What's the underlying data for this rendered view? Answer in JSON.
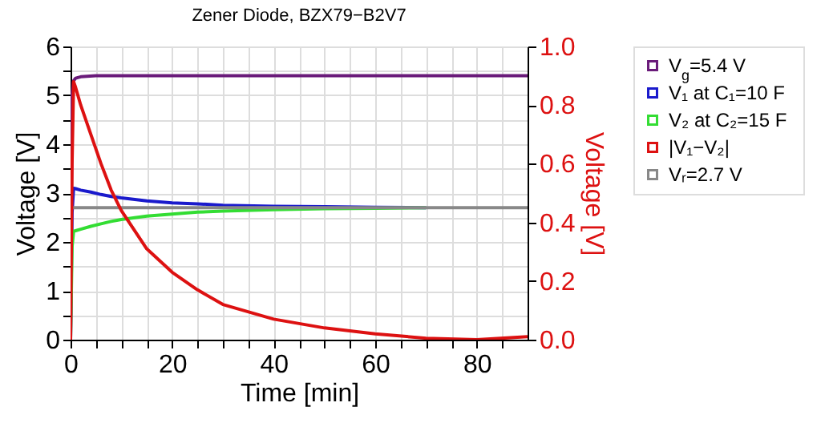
{
  "chart_data": {
    "type": "line",
    "title": "Zener Diode, BZX79−B2V7",
    "xlabel": "Time [min]",
    "ylabel": "Voltage [V]",
    "y2label": "Voltage [V]",
    "xlim": [
      0,
      90
    ],
    "xticks": [
      0,
      {
        "value": 5,
        "label": null
      },
      {
        "value": 10,
        "label": null
      },
      {
        "value": 15,
        "label": null
      },
      20,
      {
        "value": 25,
        "label": null
      },
      {
        "value": 30,
        "label": null
      },
      {
        "value": 35,
        "label": null
      },
      40,
      {
        "value": 45,
        "label": null
      },
      {
        "value": 50,
        "label": null
      },
      {
        "value": 55,
        "label": null
      },
      60,
      {
        "value": 65,
        "label": null
      },
      {
        "value": 70,
        "label": null
      },
      {
        "value": 75,
        "label": null
      },
      80,
      {
        "value": 85,
        "label": null
      }
    ],
    "ylim": [
      0,
      6
    ],
    "yticks": [
      0,
      {
        "value": 0.5,
        "label": null
      },
      1,
      {
        "value": 1.5,
        "label": null
      },
      2,
      {
        "value": 2.5,
        "label": null
      },
      3,
      {
        "value": 3.5,
        "label": null
      },
      4,
      {
        "value": 4.5,
        "label": null
      },
      5,
      {
        "value": 5.5,
        "label": null
      },
      6
    ],
    "y2lim": [
      0,
      1
    ],
    "y2ticks": [
      {
        "value": 0,
        "label": "0.0"
      },
      0.2,
      0.4,
      0.6,
      0.8,
      {
        "value": 1,
        "label": "1.0"
      }
    ],
    "grid": true,
    "legend": "right",
    "series": [
      {
        "name": "V$_{g}$=5.4 V",
        "color": "#6a1b7a",
        "x": [
          0,
          0.3,
          0.6,
          1,
          2,
          5,
          90
        ],
        "values": [
          0,
          5.0,
          5.3,
          5.35,
          5.38,
          5.4,
          5.4
        ]
      },
      {
        "name": "V₁ at C₁=10 F",
        "color": "#1a1acc",
        "x": [
          0,
          0.3,
          0.6,
          1,
          2,
          4,
          6,
          8,
          10,
          15,
          20,
          25,
          30,
          40,
          50,
          60,
          70
        ],
        "values": [
          0,
          2.6,
          3.1,
          3.09,
          3.06,
          3.02,
          2.97,
          2.93,
          2.9,
          2.84,
          2.8,
          2.78,
          2.75,
          2.73,
          2.72,
          2.71,
          2.7
        ]
      },
      {
        "name": "V₂ at C₂=15 F",
        "color": "#33dd33",
        "x": [
          0,
          0.3,
          0.6,
          1,
          2,
          4,
          6,
          8,
          10,
          15,
          20,
          25,
          30,
          40,
          50,
          60,
          70
        ],
        "values": [
          0,
          1.9,
          2.22,
          2.23,
          2.26,
          2.32,
          2.37,
          2.42,
          2.46,
          2.53,
          2.57,
          2.61,
          2.63,
          2.66,
          2.68,
          2.69,
          2.7
        ]
      },
      {
        "name": "|V₁−V₂|",
        "color": "#dd1111",
        "axis": "y2",
        "x": [
          0,
          0.3,
          0.6,
          1,
          2,
          4,
          6,
          8,
          10,
          15,
          20,
          25,
          30,
          40,
          50,
          60,
          70,
          80,
          90
        ],
        "values": [
          0,
          0.6,
          0.88,
          0.86,
          0.8,
          0.7,
          0.6,
          0.51,
          0.44,
          0.31,
          0.23,
          0.17,
          0.12,
          0.07,
          0.04,
          0.02,
          0.005,
          0,
          0.01
        ]
      },
      {
        "name": "Vᵣ=2.7 V",
        "color": "#888888",
        "x": [
          0,
          90
        ],
        "values": [
          2.7,
          2.7
        ]
      }
    ]
  }
}
